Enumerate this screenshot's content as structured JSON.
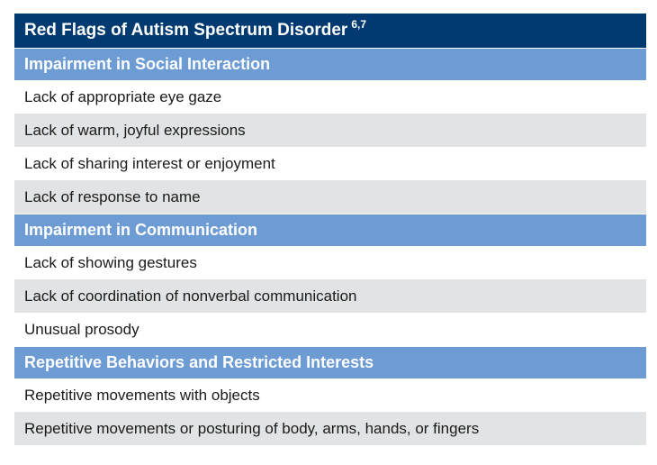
{
  "table": {
    "title": "Red Flags of Autism Spectrum Disorder",
    "title_superscript": "6,7",
    "colors": {
      "title_bg": "#003a70",
      "section_bg": "#6d9bd3",
      "shaded_row_bg": "#e2e3e4"
    },
    "sections": [
      {
        "heading": "Impairment in Social Interaction",
        "items": [
          "Lack of appropriate eye gaze",
          "Lack of warm, joyful expressions",
          "Lack of sharing interest or enjoyment",
          "Lack of response to name"
        ]
      },
      {
        "heading": "Impairment in Communication",
        "items": [
          "Lack of showing gestures",
          "Lack of coordination of nonverbal communication",
          "Unusual prosody"
        ]
      },
      {
        "heading": "Repetitive Behaviors and Restricted Interests",
        "items": [
          "Repetitive movements with objects",
          "Repetitive movements or posturing of body, arms, hands, or fingers"
        ]
      }
    ]
  }
}
